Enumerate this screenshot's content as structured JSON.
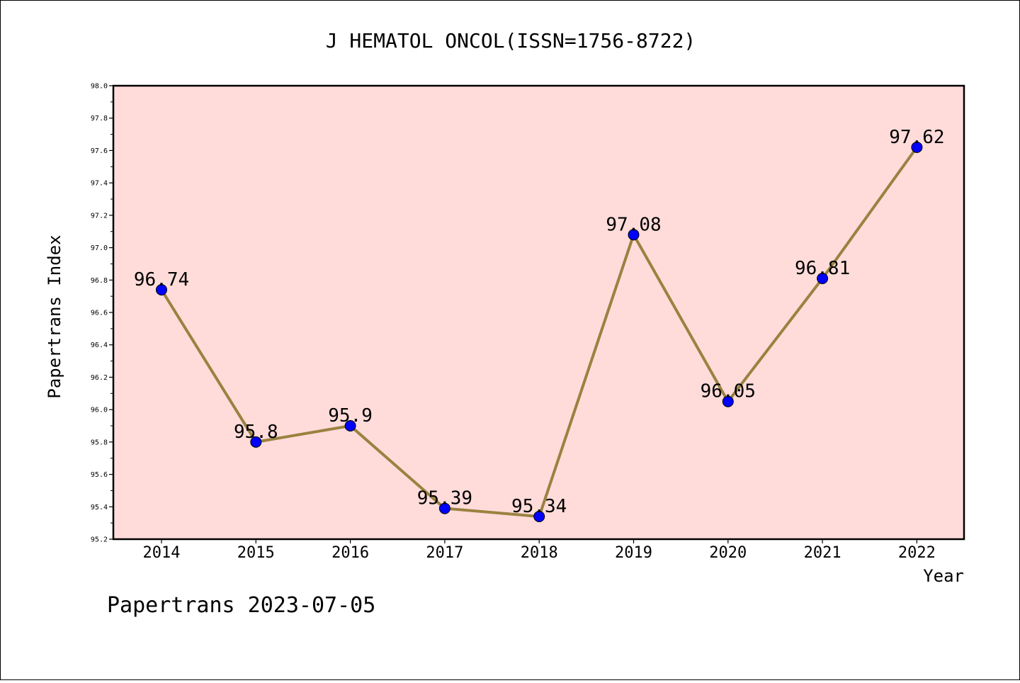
{
  "chart_data": {
    "type": "line",
    "title": "J HEMATOL ONCOL(ISSN=1756-8722)",
    "xlabel": "Year",
    "ylabel": "Papertrans Index",
    "footer": "Papertrans 2023-07-05",
    "x": [
      "2014",
      "2015",
      "2016",
      "2017",
      "2018",
      "2019",
      "2020",
      "2021",
      "2022"
    ],
    "series": [
      {
        "values": [
          96.74,
          95.8,
          95.9,
          95.39,
          95.34,
          97.08,
          96.05,
          96.81,
          97.62
        ],
        "labels": [
          "96.74",
          "95.8",
          "95.9",
          "95.39",
          "95.34",
          "97.08",
          "96.05",
          "96.81",
          "97.62"
        ]
      }
    ],
    "ylim": [
      95.2,
      98.0
    ],
    "yticks": [
      "95.2",
      "95.4",
      "95.6",
      "95.8",
      "96.0",
      "96.2",
      "96.4",
      "96.6",
      "96.8",
      "97.0",
      "97.2",
      "97.4",
      "97.6",
      "97.8",
      "98.0"
    ],
    "grid": false,
    "colors": {
      "plot_bg": "#FFDCDA",
      "line": "#9A8240",
      "marker": "#0000FF"
    }
  }
}
